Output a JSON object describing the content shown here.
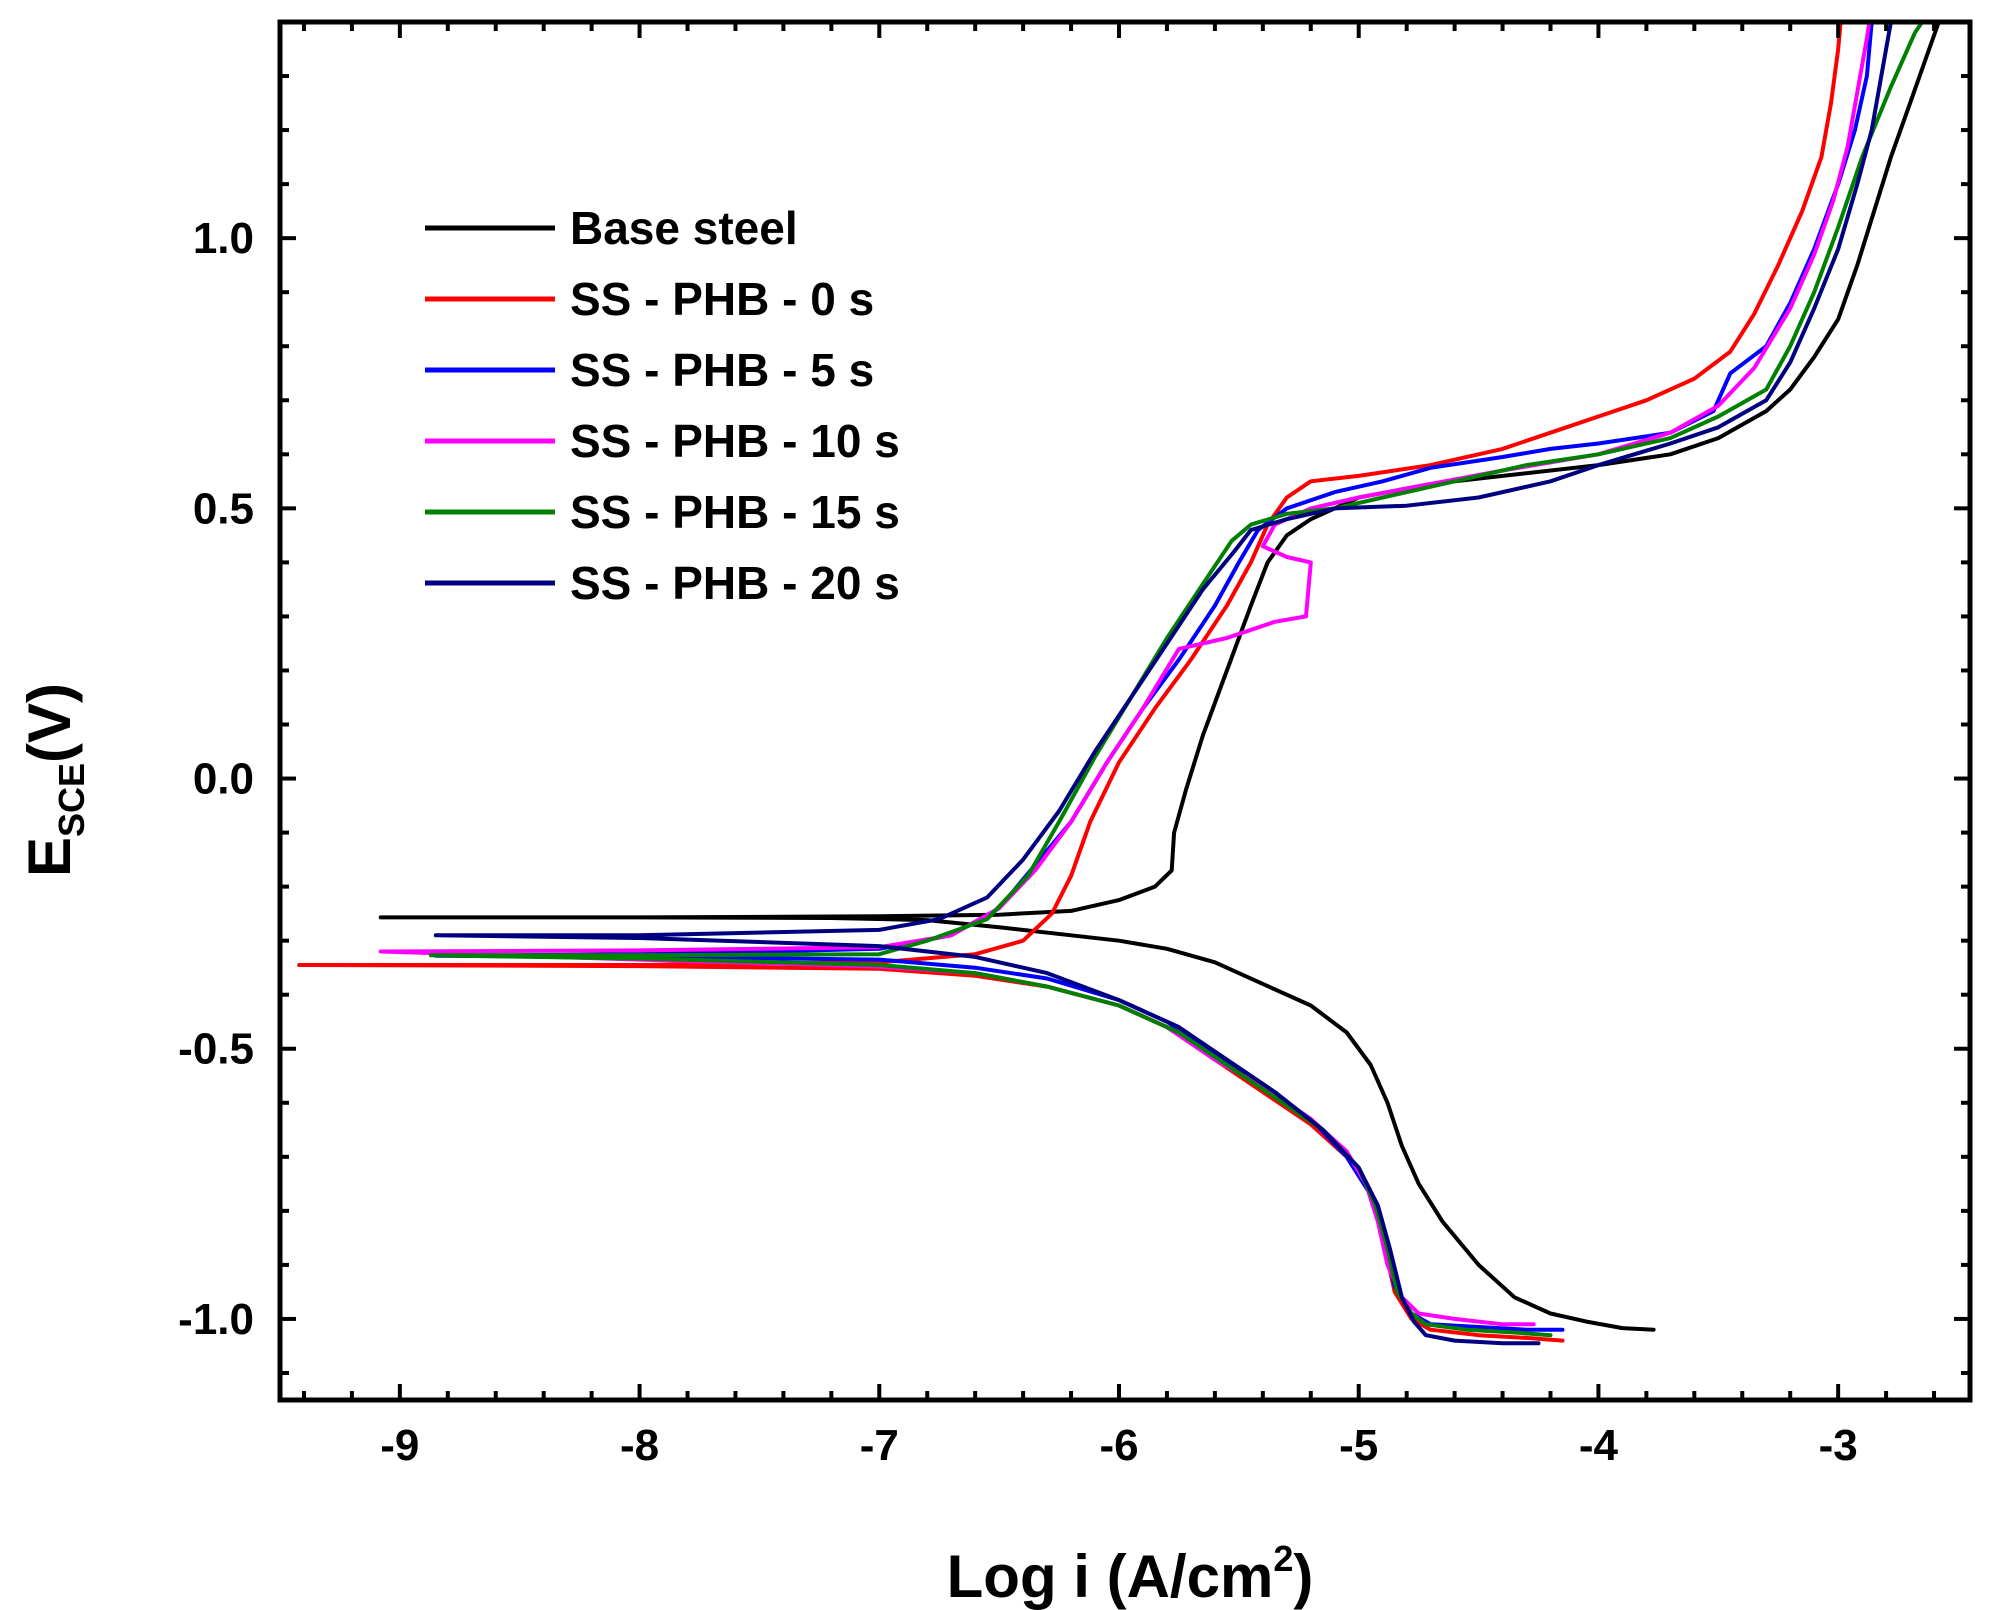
{
  "chart_data": {
    "type": "line",
    "title": "",
    "xlabel": {
      "main": "Log i (A/cm",
      "sup": "2",
      "tail": ")"
    },
    "ylabel": {
      "main": "E",
      "sub": "SCE",
      "tail": "(V)"
    },
    "xlim": [
      -9.5,
      -2.45
    ],
    "ylim": [
      -1.15,
      1.4
    ],
    "xticks": [
      -9,
      -8,
      -7,
      -6,
      -5,
      -4,
      -3
    ],
    "xtick_labels": [
      "-9",
      "-8",
      "-7",
      "-6",
      "-5",
      "-4",
      "-3"
    ],
    "yticks": [
      -1.0,
      -0.5,
      0.0,
      0.5,
      1.0
    ],
    "ytick_labels": [
      "-1.0",
      "-0.5",
      "0.0",
      "0.5",
      "1.0"
    ],
    "legend_position": "top-left",
    "series": [
      {
        "name": "Base steel",
        "color": "#000000",
        "points": [
          [
            -3.77,
            -1.02
          ],
          [
            -3.9,
            -1.017
          ],
          [
            -4.05,
            -1.005
          ],
          [
            -4.2,
            -0.99
          ],
          [
            -4.35,
            -0.96
          ],
          [
            -4.5,
            -0.9
          ],
          [
            -4.65,
            -0.82
          ],
          [
            -4.75,
            -0.75
          ],
          [
            -4.82,
            -0.68
          ],
          [
            -4.88,
            -0.6
          ],
          [
            -4.95,
            -0.53
          ],
          [
            -5.05,
            -0.47
          ],
          [
            -5.2,
            -0.42
          ],
          [
            -5.4,
            -0.38
          ],
          [
            -5.6,
            -0.34
          ],
          [
            -5.8,
            -0.315
          ],
          [
            -6.0,
            -0.3
          ],
          [
            -6.2,
            -0.29
          ],
          [
            -6.5,
            -0.275
          ],
          [
            -6.8,
            -0.262
          ],
          [
            -7.2,
            -0.258
          ],
          [
            -8.0,
            -0.257
          ],
          [
            -9.08,
            -0.257
          ],
          [
            -8.0,
            -0.257
          ],
          [
            -7.0,
            -0.255
          ],
          [
            -6.5,
            -0.252
          ],
          [
            -6.2,
            -0.245
          ],
          [
            -6.0,
            -0.225
          ],
          [
            -5.85,
            -0.2
          ],
          [
            -5.78,
            -0.17
          ],
          [
            -5.77,
            -0.1
          ],
          [
            -5.72,
            -0.02
          ],
          [
            -5.65,
            0.08
          ],
          [
            -5.55,
            0.2
          ],
          [
            -5.45,
            0.32
          ],
          [
            -5.38,
            0.4
          ],
          [
            -5.3,
            0.45
          ],
          [
            -5.2,
            0.48
          ],
          [
            -5.0,
            0.52
          ],
          [
            -4.7,
            0.545
          ],
          [
            -4.4,
            0.56
          ],
          [
            -4.0,
            0.58
          ],
          [
            -3.7,
            0.6
          ],
          [
            -3.5,
            0.63
          ],
          [
            -3.3,
            0.68
          ],
          [
            -3.2,
            0.72
          ],
          [
            -3.1,
            0.78
          ],
          [
            -3.0,
            0.85
          ],
          [
            -2.92,
            0.95
          ],
          [
            -2.85,
            1.05
          ],
          [
            -2.78,
            1.15
          ],
          [
            -2.7,
            1.25
          ],
          [
            -2.62,
            1.35
          ],
          [
            -2.58,
            1.4
          ]
        ]
      },
      {
        "name": "SS - PHB - 0 s",
        "color": "#ff0000",
        "points": [
          [
            -4.15,
            -1.04
          ],
          [
            -4.3,
            -1.035
          ],
          [
            -4.5,
            -1.03
          ],
          [
            -4.7,
            -1.02
          ],
          [
            -4.78,
            -1.0
          ],
          [
            -4.85,
            -0.95
          ],
          [
            -4.9,
            -0.85
          ],
          [
            -4.95,
            -0.77
          ],
          [
            -5.05,
            -0.7
          ],
          [
            -5.2,
            -0.64
          ],
          [
            -5.4,
            -0.58
          ],
          [
            -5.6,
            -0.52
          ],
          [
            -5.8,
            -0.46
          ],
          [
            -6.0,
            -0.42
          ],
          [
            -6.3,
            -0.385
          ],
          [
            -6.6,
            -0.365
          ],
          [
            -7.0,
            -0.352
          ],
          [
            -8.0,
            -0.347
          ],
          [
            -9.42,
            -0.345
          ],
          [
            -8.0,
            -0.345
          ],
          [
            -7.0,
            -0.34
          ],
          [
            -6.6,
            -0.325
          ],
          [
            -6.4,
            -0.3
          ],
          [
            -6.28,
            -0.25
          ],
          [
            -6.2,
            -0.18
          ],
          [
            -6.12,
            -0.08
          ],
          [
            -6.0,
            0.03
          ],
          [
            -5.85,
            0.13
          ],
          [
            -5.7,
            0.22
          ],
          [
            -5.55,
            0.32
          ],
          [
            -5.45,
            0.4
          ],
          [
            -5.38,
            0.47
          ],
          [
            -5.3,
            0.52
          ],
          [
            -5.2,
            0.55
          ],
          [
            -5.0,
            0.56
          ],
          [
            -4.7,
            0.58
          ],
          [
            -4.4,
            0.61
          ],
          [
            -4.2,
            0.64
          ],
          [
            -4.0,
            0.67
          ],
          [
            -3.8,
            0.7
          ],
          [
            -3.6,
            0.74
          ],
          [
            -3.45,
            0.79
          ],
          [
            -3.35,
            0.86
          ],
          [
            -3.25,
            0.95
          ],
          [
            -3.15,
            1.05
          ],
          [
            -3.07,
            1.15
          ],
          [
            -3.03,
            1.25
          ],
          [
            -3.0,
            1.35
          ],
          [
            -2.99,
            1.4
          ]
        ]
      },
      {
        "name": "SS - PHB - 5 s",
        "color": "#0000ff",
        "points": [
          [
            -4.15,
            -1.02
          ],
          [
            -4.3,
            -1.02
          ],
          [
            -4.5,
            -1.015
          ],
          [
            -4.7,
            -1.01
          ],
          [
            -4.78,
            -0.99
          ],
          [
            -4.85,
            -0.94
          ],
          [
            -4.9,
            -0.85
          ],
          [
            -4.95,
            -0.77
          ],
          [
            -5.05,
            -0.7
          ],
          [
            -5.2,
            -0.63
          ],
          [
            -5.4,
            -0.57
          ],
          [
            -5.6,
            -0.51
          ],
          [
            -5.8,
            -0.45
          ],
          [
            -6.0,
            -0.41
          ],
          [
            -6.3,
            -0.37
          ],
          [
            -6.6,
            -0.35
          ],
          [
            -7.0,
            -0.335
          ],
          [
            -8.0,
            -0.33
          ],
          [
            -8.85,
            -0.328
          ],
          [
            -8.0,
            -0.325
          ],
          [
            -7.0,
            -0.315
          ],
          [
            -6.7,
            -0.29
          ],
          [
            -6.5,
            -0.24
          ],
          [
            -6.35,
            -0.16
          ],
          [
            -6.2,
            -0.08
          ],
          [
            -6.05,
            0.03
          ],
          [
            -5.9,
            0.13
          ],
          [
            -5.75,
            0.22
          ],
          [
            -5.6,
            0.32
          ],
          [
            -5.5,
            0.4
          ],
          [
            -5.42,
            0.46
          ],
          [
            -5.3,
            0.5
          ],
          [
            -5.1,
            0.53
          ],
          [
            -4.9,
            0.55
          ],
          [
            -4.7,
            0.575
          ],
          [
            -4.4,
            0.595
          ],
          [
            -4.2,
            0.61
          ],
          [
            -4.0,
            0.62
          ],
          [
            -3.7,
            0.64
          ],
          [
            -3.52,
            0.68
          ],
          [
            -3.45,
            0.75
          ],
          [
            -3.3,
            0.8
          ],
          [
            -3.2,
            0.88
          ],
          [
            -3.1,
            0.98
          ],
          [
            -3.0,
            1.1
          ],
          [
            -2.93,
            1.2
          ],
          [
            -2.88,
            1.3
          ],
          [
            -2.86,
            1.4
          ]
        ]
      },
      {
        "name": "SS - PHB - 10 s",
        "color": "#ff00ff",
        "points": [
          [
            -4.27,
            -1.01
          ],
          [
            -4.4,
            -1.01
          ],
          [
            -4.6,
            -1.0
          ],
          [
            -4.75,
            -0.99
          ],
          [
            -4.82,
            -0.96
          ],
          [
            -4.88,
            -0.9
          ],
          [
            -4.92,
            -0.82
          ],
          [
            -4.97,
            -0.75
          ],
          [
            -5.05,
            -0.69
          ],
          [
            -5.2,
            -0.63
          ],
          [
            -5.4,
            -0.57
          ],
          [
            -5.6,
            -0.52
          ],
          [
            -5.8,
            -0.46
          ],
          [
            -6.0,
            -0.42
          ],
          [
            -6.3,
            -0.385
          ],
          [
            -6.6,
            -0.36
          ],
          [
            -7.0,
            -0.348
          ],
          [
            -8.0,
            -0.335
          ],
          [
            -9.08,
            -0.32
          ],
          [
            -8.0,
            -0.318
          ],
          [
            -7.0,
            -0.312
          ],
          [
            -6.7,
            -0.29
          ],
          [
            -6.5,
            -0.24
          ],
          [
            -6.35,
            -0.17
          ],
          [
            -6.2,
            -0.08
          ],
          [
            -6.05,
            0.03
          ],
          [
            -5.9,
            0.13
          ],
          [
            -5.75,
            0.24
          ],
          [
            -5.55,
            0.26
          ],
          [
            -5.35,
            0.29
          ],
          [
            -5.22,
            0.3
          ],
          [
            -5.2,
            0.4
          ],
          [
            -5.3,
            0.41
          ],
          [
            -5.4,
            0.43
          ],
          [
            -5.35,
            0.47
          ],
          [
            -5.2,
            0.5
          ],
          [
            -5.0,
            0.52
          ],
          [
            -4.7,
            0.545
          ],
          [
            -4.4,
            0.57
          ],
          [
            -4.0,
            0.6
          ],
          [
            -3.7,
            0.64
          ],
          [
            -3.5,
            0.69
          ],
          [
            -3.35,
            0.76
          ],
          [
            -3.2,
            0.87
          ],
          [
            -3.1,
            0.97
          ],
          [
            -3.02,
            1.07
          ],
          [
            -2.96,
            1.17
          ],
          [
            -2.92,
            1.27
          ],
          [
            -2.88,
            1.37
          ],
          [
            -2.87,
            1.4
          ]
        ]
      },
      {
        "name": "SS - PHB - 15 s",
        "color": "#008000",
        "points": [
          [
            -4.2,
            -1.03
          ],
          [
            -4.35,
            -1.025
          ],
          [
            -4.55,
            -1.02
          ],
          [
            -4.72,
            -1.01
          ],
          [
            -4.78,
            -0.99
          ],
          [
            -4.84,
            -0.95
          ],
          [
            -4.88,
            -0.87
          ],
          [
            -4.93,
            -0.79
          ],
          [
            -5.0,
            -0.72
          ],
          [
            -5.15,
            -0.65
          ],
          [
            -5.35,
            -0.59
          ],
          [
            -5.55,
            -0.53
          ],
          [
            -5.75,
            -0.47
          ],
          [
            -6.0,
            -0.42
          ],
          [
            -6.3,
            -0.385
          ],
          [
            -6.6,
            -0.36
          ],
          [
            -7.0,
            -0.345
          ],
          [
            -8.0,
            -0.333
          ],
          [
            -8.87,
            -0.327
          ],
          [
            -8.0,
            -0.327
          ],
          [
            -7.0,
            -0.325
          ],
          [
            -6.8,
            -0.3
          ],
          [
            -6.55,
            -0.26
          ],
          [
            -6.38,
            -0.18
          ],
          [
            -6.25,
            -0.08
          ],
          [
            -6.1,
            0.04
          ],
          [
            -5.95,
            0.15
          ],
          [
            -5.8,
            0.26
          ],
          [
            -5.65,
            0.36
          ],
          [
            -5.53,
            0.44
          ],
          [
            -5.45,
            0.47
          ],
          [
            -5.3,
            0.49
          ],
          [
            -5.1,
            0.5
          ],
          [
            -4.9,
            0.52
          ],
          [
            -4.6,
            0.55
          ],
          [
            -4.3,
            0.58
          ],
          [
            -4.0,
            0.6
          ],
          [
            -3.7,
            0.63
          ],
          [
            -3.5,
            0.67
          ],
          [
            -3.3,
            0.72
          ],
          [
            -3.2,
            0.8
          ],
          [
            -3.1,
            0.9
          ],
          [
            -3.0,
            1.02
          ],
          [
            -2.9,
            1.15
          ],
          [
            -2.78,
            1.28
          ],
          [
            -2.68,
            1.38
          ],
          [
            -2.65,
            1.4
          ]
        ]
      },
      {
        "name": "SS - PHB - 20 s",
        "color": "#000080",
        "points": [
          [
            -4.25,
            -1.045
          ],
          [
            -4.4,
            -1.045
          ],
          [
            -4.6,
            -1.04
          ],
          [
            -4.72,
            -1.03
          ],
          [
            -4.77,
            -1.005
          ],
          [
            -4.82,
            -0.96
          ],
          [
            -4.87,
            -0.87
          ],
          [
            -4.92,
            -0.79
          ],
          [
            -5.0,
            -0.72
          ],
          [
            -5.15,
            -0.65
          ],
          [
            -5.35,
            -0.58
          ],
          [
            -5.55,
            -0.52
          ],
          [
            -5.75,
            -0.46
          ],
          [
            -6.0,
            -0.41
          ],
          [
            -6.3,
            -0.36
          ],
          [
            -6.6,
            -0.33
          ],
          [
            -7.0,
            -0.31
          ],
          [
            -8.0,
            -0.295
          ],
          [
            -8.85,
            -0.29
          ],
          [
            -8.0,
            -0.29
          ],
          [
            -7.0,
            -0.28
          ],
          [
            -6.75,
            -0.26
          ],
          [
            -6.55,
            -0.22
          ],
          [
            -6.4,
            -0.15
          ],
          [
            -6.25,
            -0.06
          ],
          [
            -6.1,
            0.05
          ],
          [
            -5.95,
            0.15
          ],
          [
            -5.8,
            0.25
          ],
          [
            -5.65,
            0.35
          ],
          [
            -5.52,
            0.42
          ],
          [
            -5.45,
            0.46
          ],
          [
            -5.3,
            0.48
          ],
          [
            -5.1,
            0.5
          ],
          [
            -4.8,
            0.505
          ],
          [
            -4.5,
            0.52
          ],
          [
            -4.2,
            0.55
          ],
          [
            -4.0,
            0.58
          ],
          [
            -3.7,
            0.62
          ],
          [
            -3.5,
            0.65
          ],
          [
            -3.3,
            0.7
          ],
          [
            -3.2,
            0.77
          ],
          [
            -3.1,
            0.87
          ],
          [
            -3.0,
            0.98
          ],
          [
            -2.92,
            1.1
          ],
          [
            -2.86,
            1.2
          ],
          [
            -2.82,
            1.3
          ],
          [
            -2.78,
            1.4
          ]
        ]
      }
    ]
  }
}
